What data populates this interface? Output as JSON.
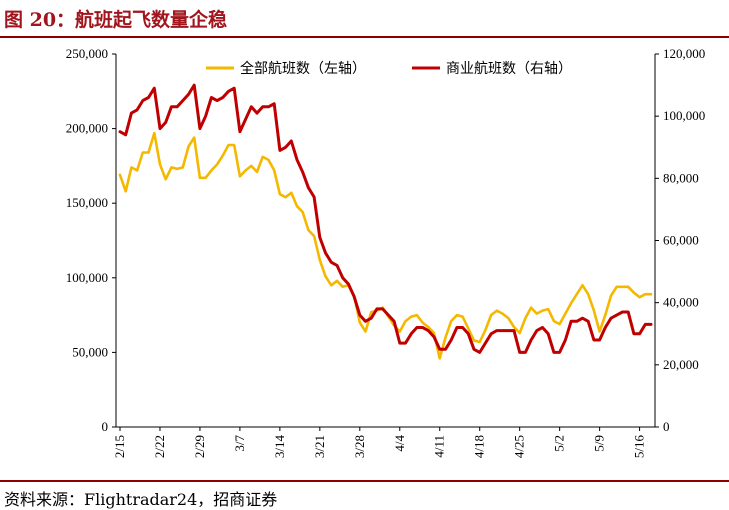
{
  "title": "图 20：航班起飞数量企稳",
  "source": "资料来源：Flightradar24，招商证券",
  "chart_data": {
    "type": "line",
    "title": "",
    "xlabel": "",
    "ylabel_left": "",
    "ylabel_right": "",
    "categories": [
      "2/15",
      "2/16",
      "2/17",
      "2/18",
      "2/19",
      "2/20",
      "2/21",
      "2/22",
      "2/23",
      "2/24",
      "2/25",
      "2/26",
      "2/27",
      "2/28",
      "2/29",
      "3/1",
      "3/2",
      "3/3",
      "3/4",
      "3/5",
      "3/6",
      "3/7",
      "3/8",
      "3/9",
      "3/10",
      "3/11",
      "3/12",
      "3/13",
      "3/14",
      "3/15",
      "3/16",
      "3/17",
      "3/18",
      "3/19",
      "3/20",
      "3/21",
      "3/22",
      "3/23",
      "3/24",
      "3/25",
      "3/26",
      "3/27",
      "3/28",
      "3/29",
      "3/30",
      "3/31",
      "4/1",
      "4/2",
      "4/3",
      "4/4",
      "4/5",
      "4/6",
      "4/7",
      "4/8",
      "4/9",
      "4/10",
      "4/11",
      "4/12",
      "4/13",
      "4/14",
      "4/15",
      "4/16",
      "4/17",
      "4/18",
      "4/19",
      "4/20",
      "4/21",
      "4/22",
      "4/23",
      "4/24",
      "4/25",
      "4/26",
      "4/27",
      "4/28",
      "4/29",
      "4/30",
      "5/1",
      "5/2",
      "5/3",
      "5/4",
      "5/5",
      "5/6",
      "5/7",
      "5/8",
      "5/9",
      "5/10",
      "5/11",
      "5/12",
      "5/13",
      "5/14",
      "5/15",
      "5/16",
      "5/17",
      "5/18"
    ],
    "x_tick_labels": [
      "2/15",
      "2/22",
      "2/29",
      "3/7",
      "3/14",
      "3/21",
      "3/28",
      "4/4",
      "4/11",
      "4/18",
      "4/25",
      "5/2",
      "5/9",
      "5/16"
    ],
    "left_axis": {
      "min": 0,
      "max": 250000,
      "ticks": [
        "0",
        "50,000",
        "100,000",
        "150,000",
        "200,000",
        "250,000"
      ]
    },
    "right_axis": {
      "min": 0,
      "max": 120000,
      "ticks": [
        "0",
        "20,000",
        "40,000",
        "60,000",
        "80,000",
        "100,000",
        "120,000"
      ]
    },
    "legend_position": "top",
    "grid": false,
    "series": [
      {
        "name": "全部航班数（左轴）",
        "axis": "left",
        "color": "#f5b800",
        "values": [
          169000,
          158000,
          174000,
          172000,
          184000,
          184000,
          197000,
          176000,
          166000,
          174000,
          173000,
          174000,
          188000,
          194000,
          167000,
          167000,
          172000,
          176000,
          182000,
          189000,
          189000,
          168000,
          172000,
          175000,
          171000,
          181000,
          179000,
          172000,
          156000,
          154000,
          157000,
          148000,
          144000,
          132000,
          128000,
          112000,
          101000,
          95000,
          98000,
          94000,
          95000,
          88000,
          70000,
          64000,
          77000,
          78000,
          80000,
          74000,
          68000,
          64000,
          71000,
          74000,
          75000,
          70000,
          67000,
          63000,
          46000,
          60000,
          71000,
          75000,
          74000,
          66000,
          58000,
          57000,
          65000,
          75000,
          78000,
          76000,
          73000,
          67000,
          63000,
          73000,
          80000,
          76000,
          78000,
          79000,
          71000,
          69000,
          76000,
          83000,
          89000,
          95000,
          89000,
          78000,
          64000,
          75000,
          88000,
          94000,
          94000,
          94000,
          90000,
          87000,
          89000,
          89000
        ]
      },
      {
        "name": "商业航班数（右轴）",
        "axis": "right",
        "color": "#c00000",
        "values": [
          95000,
          94000,
          101000,
          102000,
          105000,
          106000,
          109000,
          96000,
          98000,
          103000,
          103000,
          105000,
          107000,
          110000,
          96000,
          100000,
          106000,
          105000,
          106000,
          108000,
          109000,
          95000,
          99000,
          103000,
          101000,
          103000,
          103000,
          104000,
          89000,
          90000,
          92000,
          86000,
          82000,
          77000,
          74000,
          61000,
          56000,
          53000,
          52000,
          48000,
          46000,
          42000,
          36000,
          34000,
          35000,
          38000,
          38000,
          36000,
          34000,
          27000,
          27000,
          30000,
          32000,
          32000,
          31000,
          29000,
          25000,
          25000,
          28000,
          32000,
          32000,
          30000,
          25000,
          24000,
          27000,
          30000,
          31000,
          31000,
          31000,
          31000,
          24000,
          24000,
          28000,
          31000,
          32000,
          30000,
          24000,
          24000,
          28000,
          34000,
          34000,
          35000,
          34000,
          28000,
          28000,
          32000,
          35000,
          36000,
          37000,
          37000,
          30000,
          30000,
          33000,
          33000
        ]
      }
    ]
  }
}
